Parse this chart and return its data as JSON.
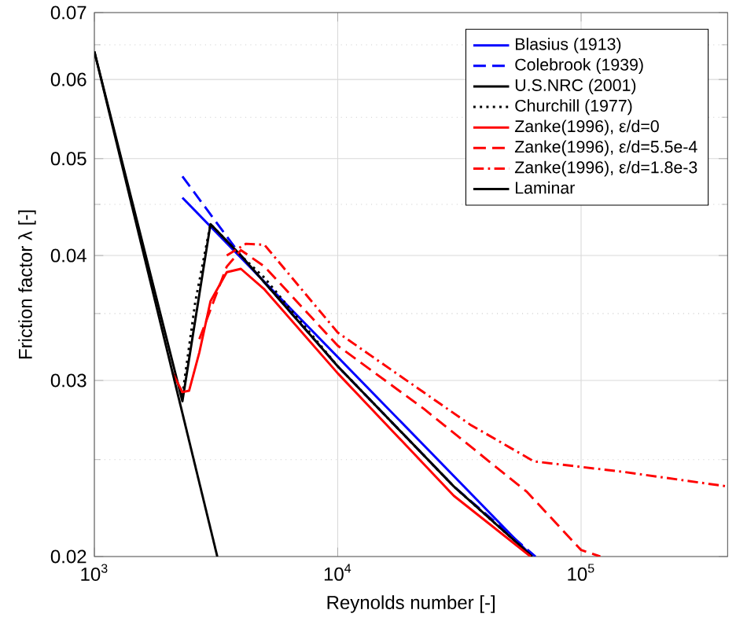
{
  "chart_data": {
    "type": "line",
    "xlabel": "Reynolds number [-]",
    "ylabel": "Friction factor λ [-]",
    "log": "xy",
    "grid": true,
    "legend": "top right",
    "xlim": [
      1000,
      400000
    ],
    "ylim": [
      0.02,
      0.07
    ],
    "xticks": [
      {
        "value": 1000,
        "label": "10$^{3}$"
      },
      {
        "value": 10000,
        "label": "10$^{4}$"
      },
      {
        "value": 100000,
        "label": "10$^{5}$"
      }
    ],
    "yticks": [
      0.02,
      0.03,
      0.04,
      0.05,
      0.06,
      0.07
    ],
    "series": [
      {
        "name": "Blasius (1913)",
        "color": "#0000ff",
        "line_style": "solid",
        "x": [
          2300,
          63000
        ],
        "values": [
          0.0457,
          0.02
        ]
      },
      {
        "name": "Colebrook (1939)",
        "color": "#0000ff",
        "line_style": "dashed",
        "x": [
          2300,
          4000,
          10000,
          30000,
          65000
        ],
        "values": [
          0.048,
          0.04,
          0.031,
          0.0235,
          0.02
        ]
      },
      {
        "name": "U.S.NRC (2001)",
        "color": "#000000",
        "line_style": "solid",
        "x": [
          1000,
          2300,
          3000,
          4000,
          10000,
          30000,
          63000
        ],
        "values": [
          0.064,
          0.0286,
          0.043,
          0.04,
          0.031,
          0.0235,
          0.02
        ]
      },
      {
        "name": "Churchill (1977)",
        "color": "#000000",
        "line_style": "dotted",
        "x": [
          2300,
          2600,
          3000,
          4000,
          5000,
          10000,
          30000,
          63000
        ],
        "values": [
          0.029,
          0.036,
          0.043,
          0.04,
          0.038,
          0.031,
          0.0235,
          0.02
        ]
      },
      {
        "name": "Zanke(1996), ε/d=0",
        "color": "#ff0000",
        "line_style": "solid",
        "x": [
          2100,
          2300,
          2450,
          2700,
          3000,
          3500,
          4000,
          5000,
          10000,
          30000,
          62000
        ],
        "values": [
          0.0305,
          0.0292,
          0.0293,
          0.032,
          0.036,
          0.0385,
          0.0388,
          0.037,
          0.0305,
          0.023,
          0.02
        ]
      },
      {
        "name": "Zanke(1996), ε/d=5.5e-4",
        "color": "#ff0000",
        "line_style": "dashed",
        "x": [
          2700,
          3500,
          4000,
          5000,
          10000,
          22600,
          60000,
          100000,
          120000
        ],
        "values": [
          0.033,
          0.039,
          0.0405,
          0.039,
          0.0325,
          0.0281,
          0.0232,
          0.0203,
          0.02
        ]
      },
      {
        "name": "Zanke(1996), ε/d=1.8e-3",
        "color": "#ff0000",
        "line_style": "dashdot",
        "x": [
          3500,
          4200,
          5000,
          10000,
          35000,
          64000,
          150000,
          400000
        ],
        "values": [
          0.04,
          0.0411,
          0.041,
          0.0335,
          0.0271,
          0.0249,
          0.0243,
          0.0235
        ]
      },
      {
        "name": "Laminar",
        "color": "#000000",
        "line_style": "solid",
        "x": [
          1000,
          3200
        ],
        "values": [
          0.064,
          0.02
        ]
      }
    ]
  }
}
